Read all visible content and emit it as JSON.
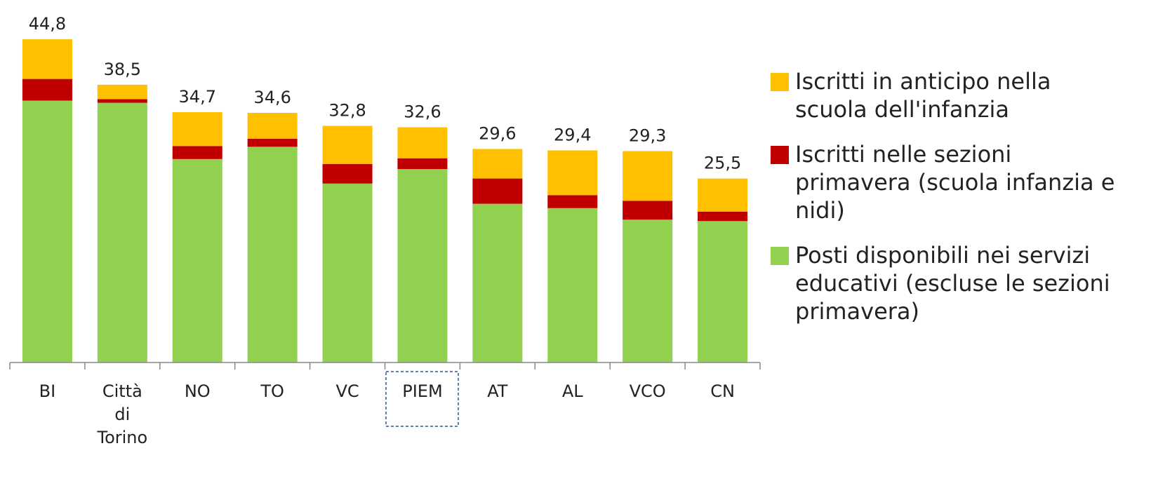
{
  "chart_data": {
    "type": "stacked-bar",
    "categories": [
      "BI",
      "Città di Torino",
      "NO",
      "TO",
      "VC",
      "PIEM",
      "AT",
      "AL",
      "VCO",
      "CN"
    ],
    "series": [
      {
        "name": "Posti disponibili nei servizi educativi (escluse le sezioni primavera)",
        "color": "#92d050",
        "values": [
          36.3,
          36.0,
          28.2,
          29.9,
          24.8,
          26.8,
          22.0,
          21.4,
          19.8,
          19.6
        ]
      },
      {
        "name": "Iscritti nelle sezioni primavera (scuola infanzia e nidi)",
        "color": "#c00000",
        "values": [
          3.0,
          0.5,
          1.8,
          1.1,
          2.7,
          1.5,
          3.5,
          1.8,
          2.6,
          1.3
        ]
      },
      {
        "name": "Iscritti in anticipo nella scuola dell'infanzia",
        "color": "#ffc000",
        "values": [
          5.5,
          2.0,
          4.7,
          3.6,
          5.3,
          4.3,
          4.1,
          6.2,
          6.9,
          4.6
        ]
      }
    ],
    "totals": [
      44.8,
      38.5,
      34.7,
      34.6,
      32.8,
      32.6,
      29.6,
      29.4,
      29.3,
      25.5
    ],
    "total_labels": [
      "44,8",
      "38,5",
      "34,7",
      "34,6",
      "32,8",
      "32,6",
      "29,6",
      "29,4",
      "29,3",
      "25,5"
    ],
    "highlight_category": "PIEM"
  }
}
